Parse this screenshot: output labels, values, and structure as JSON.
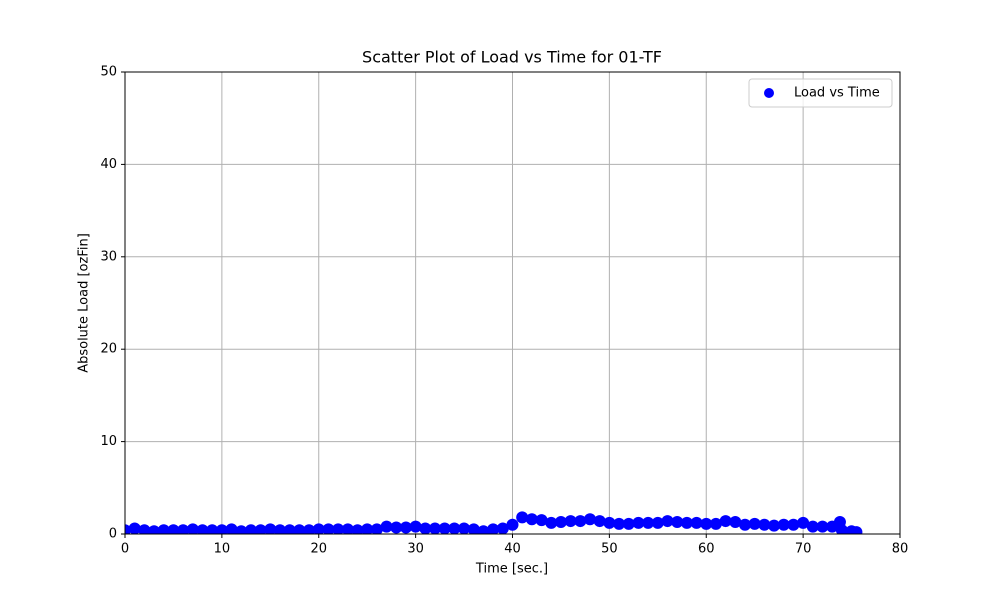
{
  "chart_data": {
    "type": "scatter",
    "title": "Scatter Plot of Load vs Time for 01-TF",
    "x_label": "Time [sec.]",
    "y_label": "Absolute Load [ozFin]",
    "series": [
      {
        "name": "Load vs Time",
        "color": "#0000ff",
        "x": [
          0,
          1,
          2,
          3,
          4,
          5,
          6,
          7,
          8,
          9,
          10,
          11,
          12,
          13,
          14,
          15,
          16,
          17,
          18,
          19,
          20,
          21,
          22,
          23,
          24,
          25,
          26,
          27,
          28,
          29,
          30,
          31,
          32,
          33,
          34,
          35,
          36,
          37,
          38,
          39,
          40,
          41,
          42,
          43,
          44,
          45,
          46,
          47,
          48,
          49,
          50,
          51,
          52,
          53,
          54,
          55,
          56,
          57,
          58,
          59,
          60,
          61,
          62,
          63,
          64,
          65,
          66,
          67,
          68,
          69,
          70,
          71,
          72,
          73,
          73.8,
          74,
          75,
          75.5
        ],
        "values": [
          0.4,
          0.6,
          0.4,
          0.3,
          0.4,
          0.4,
          0.4,
          0.5,
          0.4,
          0.4,
          0.4,
          0.5,
          0.3,
          0.4,
          0.4,
          0.5,
          0.4,
          0.4,
          0.4,
          0.4,
          0.5,
          0.5,
          0.5,
          0.5,
          0.4,
          0.5,
          0.5,
          0.8,
          0.7,
          0.7,
          0.8,
          0.6,
          0.6,
          0.6,
          0.6,
          0.6,
          0.5,
          0.3,
          0.5,
          0.6,
          1.0,
          1.8,
          1.6,
          1.5,
          1.2,
          1.3,
          1.4,
          1.4,
          1.6,
          1.4,
          1.2,
          1.1,
          1.1,
          1.2,
          1.2,
          1.2,
          1.4,
          1.3,
          1.2,
          1.2,
          1.1,
          1.1,
          1.4,
          1.3,
          1.0,
          1.1,
          1.0,
          0.9,
          1.0,
          1.0,
          1.2,
          0.8,
          0.8,
          0.8,
          1.3,
          0.4,
          0.3,
          0.2
        ]
      }
    ],
    "xlim": [
      0,
      80
    ],
    "xticks": [
      0,
      10,
      20,
      30,
      40,
      50,
      60,
      70,
      80
    ],
    "ylim": [
      0,
      50
    ],
    "yticks": [
      0,
      10,
      20,
      30,
      40,
      50
    ],
    "grid": true,
    "legend": "upper right"
  }
}
